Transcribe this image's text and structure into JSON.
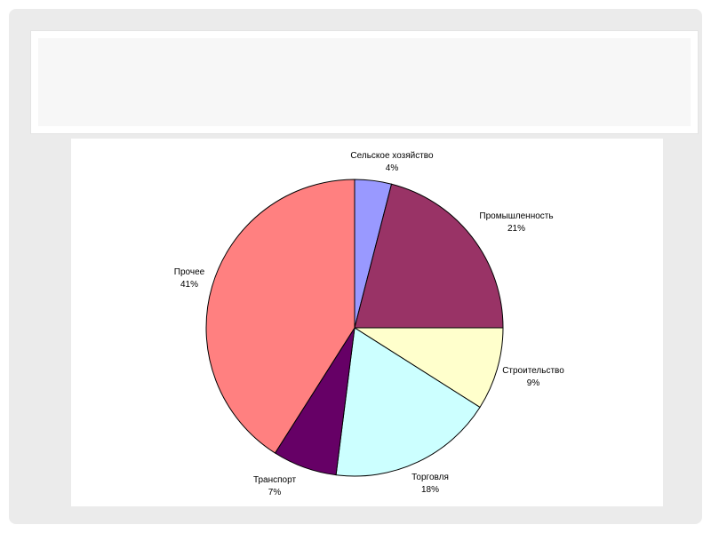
{
  "slide": {
    "title": ""
  },
  "chart_data": {
    "type": "pie",
    "title": "",
    "legend": "none",
    "slices": [
      {
        "label": "Сельское хозяйство",
        "value": 4,
        "percent_text": "4%",
        "color": "#9999ff"
      },
      {
        "label": "Промышленность",
        "value": 21,
        "percent_text": "21%",
        "color": "#993366"
      },
      {
        "label": "Строительство",
        "value": 9,
        "percent_text": "9%",
        "color": "#ffffcc"
      },
      {
        "label": "Торговля",
        "value": 18,
        "percent_text": "18%",
        "color": "#ccffff"
      },
      {
        "label": "Транспорт",
        "value": 7,
        "percent_text": "7%",
        "color": "#660066"
      },
      {
        "label": "Прочее",
        "value": 41,
        "percent_text": "41%",
        "color": "#ff8080"
      }
    ]
  }
}
